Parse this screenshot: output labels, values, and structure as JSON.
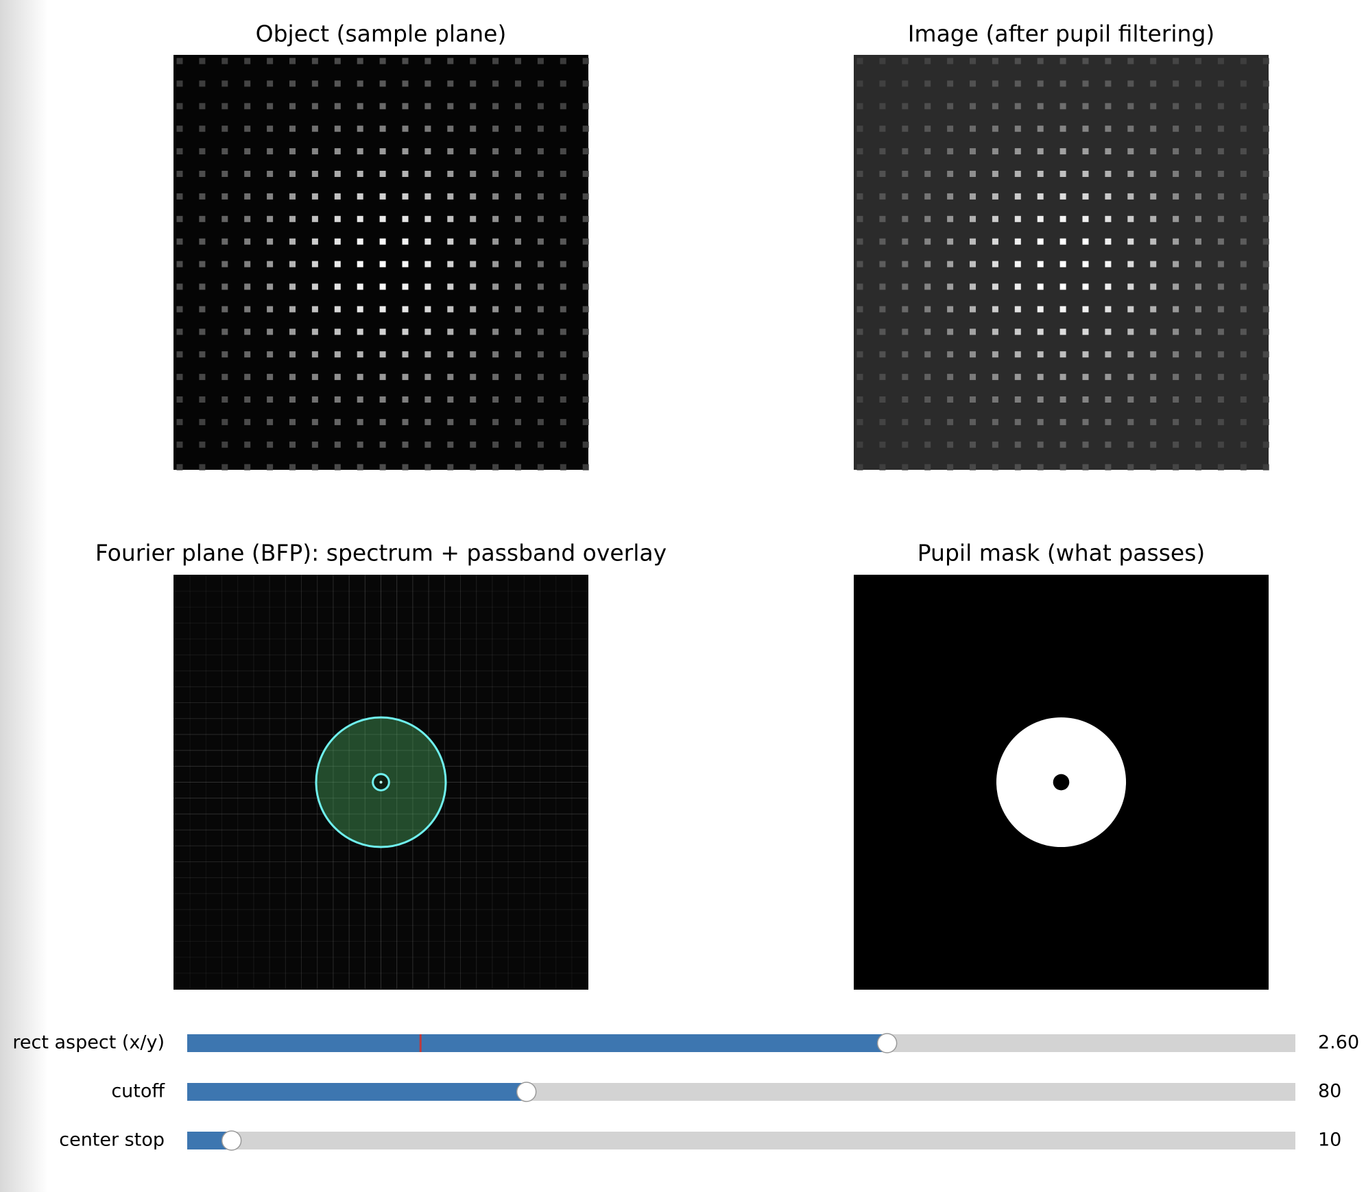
{
  "panels": [
    {
      "title": "Object (sample plane)"
    },
    {
      "title": "Image (after pupil filtering)"
    },
    {
      "title": "Fourier plane (BFP): spectrum + passband overlay"
    },
    {
      "title": "Pupil mask (what passes)"
    }
  ],
  "sliders": [
    {
      "label": "rect aspect (x/y)",
      "value": 2.6,
      "value_label": "2.60",
      "min": 0.2,
      "max": 4,
      "init": 1.0
    },
    {
      "label": "cutoff",
      "value": 80,
      "min": 5,
      "max": 250
    },
    {
      "label": "center stop",
      "value": 10,
      "min": 0,
      "max": 250
    }
  ]
}
